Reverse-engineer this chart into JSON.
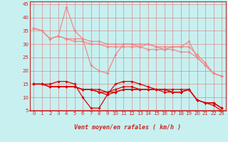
{
  "bg_color": "#c8f0f0",
  "grid_color": "#e08080",
  "xlabel": "Vent moyen/en rafales ( km/h )",
  "xlim": [
    -0.5,
    23.5
  ],
  "ylim": [
    5,
    46
  ],
  "yticks": [
    5,
    10,
    15,
    20,
    25,
    30,
    35,
    40,
    45
  ],
  "xticks": [
    0,
    1,
    2,
    3,
    4,
    5,
    6,
    7,
    8,
    9,
    10,
    11,
    12,
    13,
    14,
    15,
    16,
    17,
    18,
    19,
    20,
    21,
    22,
    23
  ],
  "x": [
    0,
    1,
    2,
    3,
    4,
    5,
    6,
    7,
    8,
    9,
    10,
    11,
    12,
    13,
    14,
    15,
    16,
    17,
    18,
    19,
    20,
    21,
    22,
    23
  ],
  "lines_light": [
    [
      36,
      35,
      32,
      33,
      44,
      35,
      32,
      22,
      20,
      19,
      26,
      30,
      30,
      29,
      30,
      29,
      28,
      29,
      29,
      31,
      25,
      22,
      19,
      18
    ],
    [
      36,
      35,
      32,
      33,
      32,
      32,
      32,
      31,
      31,
      30,
      30,
      30,
      30,
      30,
      30,
      29,
      29,
      29,
      29,
      29,
      26,
      23,
      19,
      18
    ],
    [
      36,
      35,
      32,
      33,
      32,
      31,
      31,
      30,
      30,
      29,
      29,
      29,
      29,
      29,
      28,
      28,
      28,
      28,
      27,
      27,
      25,
      22,
      19,
      18
    ]
  ],
  "lines_dark": [
    [
      15,
      15,
      15,
      16,
      16,
      15,
      10,
      6,
      6,
      11,
      15,
      16,
      16,
      15,
      14,
      13,
      13,
      12,
      12,
      13,
      9,
      8,
      8,
      6
    ],
    [
      15,
      15,
      14,
      14,
      14,
      14,
      13,
      13,
      13,
      12,
      13,
      14,
      14,
      13,
      13,
      13,
      13,
      13,
      13,
      13,
      9,
      8,
      8,
      6
    ],
    [
      15,
      15,
      14,
      14,
      14,
      14,
      13,
      13,
      12,
      12,
      12,
      13,
      13,
      13,
      13,
      13,
      13,
      12,
      12,
      13,
      9,
      8,
      8,
      6
    ],
    [
      15,
      15,
      14,
      14,
      14,
      14,
      13,
      13,
      12,
      11,
      12,
      13,
      13,
      13,
      13,
      13,
      12,
      12,
      12,
      13,
      9,
      8,
      7,
      5
    ]
  ],
  "light_color": "#f08888",
  "dark_color": "#dd0000",
  "arrow_color": "#dd4444",
  "spine_color": "#cc2222",
  "tick_color": "#cc2222"
}
